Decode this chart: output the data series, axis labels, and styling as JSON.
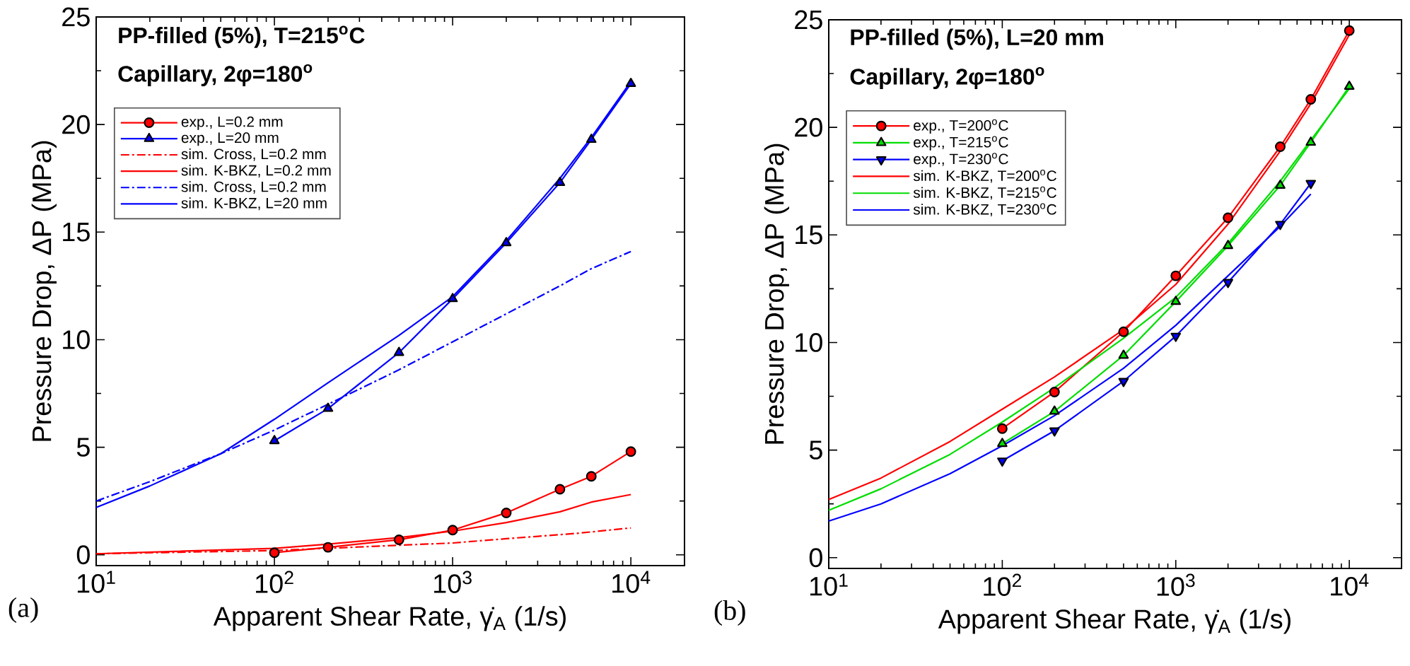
{
  "chart_data": [
    {
      "type": "line",
      "title": "PP-filled (5%), T=215$^{o}$C",
      "subtitle": "Capillary, 2φ=180$^{o}$",
      "xlabel": "Apparent Shear Rate, γ̇$_{A}$ (1/s)",
      "ylabel": "Pressure Drop, ΔP (MPa)",
      "annotations": [
        "(a)"
      ],
      "log": "x",
      "legend": "top left",
      "xlim": [
        10,
        20000
      ],
      "ylim": [
        -0.5,
        25
      ],
      "xticks": [
        {
          "value": 10,
          "label": "10$^{1}$"
        },
        {
          "value": 100,
          "label": "10$^{2}$"
        },
        {
          "value": 1000,
          "label": "10$^{3}$"
        },
        {
          "value": 10000,
          "label": "10$^{4}$"
        }
      ],
      "yticks": [
        0,
        5,
        10,
        15,
        20,
        25
      ],
      "series": [
        {
          "name": "exp., L=0.2 mm",
          "color": "#ff0000",
          "marker": "circle",
          "line_style": "solid",
          "x": [
            100,
            200,
            500,
            1000,
            2000,
            4000,
            6000,
            10000
          ],
          "values": [
            0.1,
            0.35,
            0.7,
            1.15,
            1.95,
            3.05,
            3.65,
            4.8
          ]
        },
        {
          "name": "exp., L=20 mm",
          "color": "#0000ff",
          "marker": "triangle",
          "line_style": "solid",
          "x": [
            100,
            200,
            500,
            1000,
            2000,
            4000,
            6000,
            10000
          ],
          "values": [
            5.3,
            6.8,
            9.4,
            11.9,
            14.5,
            17.3,
            19.3,
            21.9
          ]
        },
        {
          "name": "sim. Cross, L=0.2 mm",
          "color": "#ff0000",
          "marker": "none",
          "line_style": "dashdot",
          "x": [
            10,
            100,
            1000,
            2000,
            5000,
            10000
          ],
          "values": [
            0.05,
            0.2,
            0.55,
            0.75,
            1.0,
            1.25
          ]
        },
        {
          "name": "sim. K-BKZ, L=0.2 mm",
          "color": "#ff0000",
          "marker": "none",
          "line_style": "solid",
          "x": [
            10,
            100,
            200,
            500,
            1000,
            2000,
            4000,
            6000,
            10000
          ],
          "values": [
            0.05,
            0.3,
            0.5,
            0.8,
            1.1,
            1.5,
            2.0,
            2.45,
            2.8
          ]
        },
        {
          "name": "sim. Cross, L=0.2 mm",
          "color": "#0000ff",
          "marker": "none",
          "line_style": "dashdot",
          "x": [
            10,
            20,
            50,
            100,
            200,
            500,
            1000,
            2000,
            4000,
            6000,
            10000
          ],
          "values": [
            2.5,
            3.4,
            4.7,
            5.8,
            7.0,
            8.6,
            9.9,
            11.2,
            12.5,
            13.3,
            14.1
          ]
        },
        {
          "name": "sim. K-BKZ, L=20 mm",
          "color": "#0000ff",
          "marker": "none",
          "line_style": "solid",
          "x": [
            10,
            20,
            50,
            100,
            200,
            500,
            1000,
            2000,
            4000,
            6000,
            10000
          ],
          "values": [
            2.2,
            3.2,
            4.7,
            6.3,
            8.0,
            10.2,
            12.0,
            14.6,
            17.5,
            19.4,
            22.0
          ]
        }
      ]
    },
    {
      "type": "line",
      "title": "PP-filled (5%), L=20 mm",
      "subtitle": "Capillary, 2φ=180$^{o}$",
      "xlabel": "Apparent Shear Rate, γ̇$_{A}$ (1/s)",
      "ylabel": "Pressure Drop, ΔP (MPa)",
      "annotations": [
        "(b)"
      ],
      "log": "x",
      "legend": "top left",
      "xlim": [
        10,
        20000
      ],
      "ylim": [
        -0.5,
        25
      ],
      "xticks": [
        {
          "value": 10,
          "label": "10$^{1}$"
        },
        {
          "value": 100,
          "label": "10$^{2}$"
        },
        {
          "value": 1000,
          "label": "10$^{3}$"
        },
        {
          "value": 10000,
          "label": "10$^{4}$"
        }
      ],
      "yticks": [
        0,
        5,
        10,
        15,
        20,
        25
      ],
      "series": [
        {
          "name": "exp., T=200$^{o}$C",
          "color": "#ff0000",
          "marker": "circle",
          "line_style": "solid",
          "x": [
            100,
            200,
            500,
            1000,
            2000,
            4000,
            6000,
            10000
          ],
          "values": [
            6.0,
            7.7,
            10.5,
            13.1,
            15.8,
            19.1,
            21.3,
            24.5
          ]
        },
        {
          "name": "exp., T=215$^{o}$C",
          "color": "#00dd00",
          "marker": "triangle",
          "line_style": "solid",
          "x": [
            100,
            200,
            500,
            1000,
            2000,
            4000,
            6000,
            10000
          ],
          "values": [
            5.3,
            6.8,
            9.4,
            11.9,
            14.5,
            17.3,
            19.3,
            21.9
          ]
        },
        {
          "name": "exp., T=230$^{o}$C",
          "color": "#0000ff",
          "marker": "triangle down",
          "line_style": "solid",
          "x": [
            100,
            200,
            500,
            1000,
            2000,
            4000,
            6000
          ],
          "values": [
            4.5,
            5.9,
            8.2,
            10.3,
            12.8,
            15.5,
            17.4
          ]
        },
        {
          "name": "sim. K-BKZ, T=200$^{o}$C",
          "color": "#ff0000",
          "marker": "none",
          "line_style": "solid",
          "x": [
            10,
            20,
            50,
            100,
            200,
            500,
            1000,
            2000,
            4000,
            6000,
            10000
          ],
          "values": [
            2.7,
            3.7,
            5.4,
            6.9,
            8.4,
            10.6,
            12.7,
            15.5,
            18.9,
            21.1,
            24.3
          ]
        },
        {
          "name": "sim. K-BKZ, T=215$^{o}$C",
          "color": "#00dd00",
          "marker": "none",
          "line_style": "solid",
          "x": [
            10,
            20,
            50,
            100,
            200,
            500,
            1000,
            2000,
            4000,
            6000,
            10000
          ],
          "values": [
            2.2,
            3.2,
            4.8,
            6.3,
            7.9,
            10.2,
            12.1,
            14.6,
            17.5,
            19.4,
            21.8
          ]
        },
        {
          "name": "sim. K-BKZ, T=230$^{o}$C",
          "color": "#0000ff",
          "marker": "none",
          "line_style": "solid",
          "x": [
            10,
            20,
            50,
            100,
            200,
            500,
            1000,
            2000,
            4000,
            6000
          ],
          "values": [
            1.7,
            2.5,
            3.9,
            5.2,
            6.6,
            8.8,
            10.8,
            13.1,
            15.4,
            16.9
          ]
        }
      ]
    }
  ]
}
